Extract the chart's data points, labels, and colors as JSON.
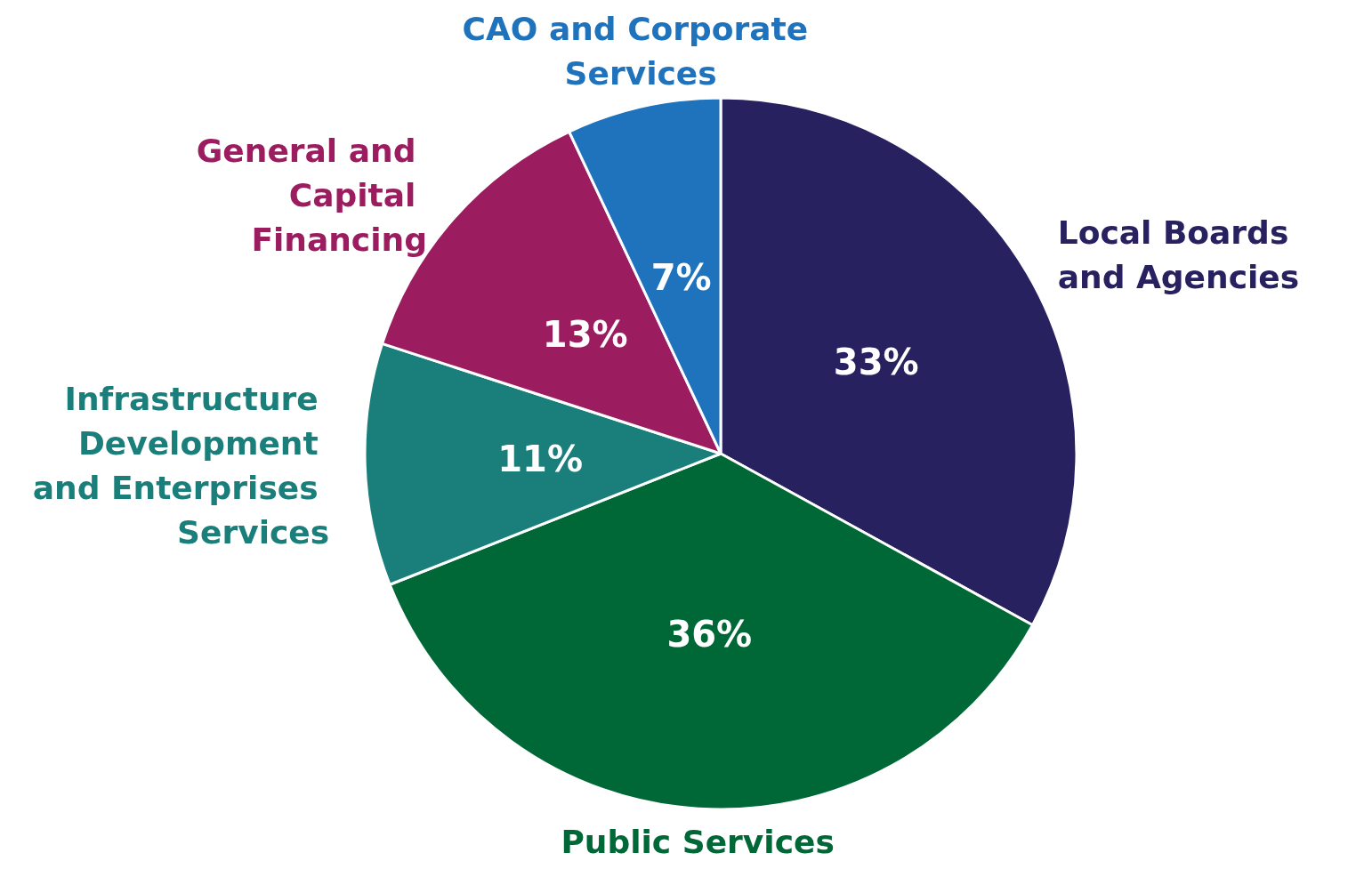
{
  "chart_data": {
    "type": "pie",
    "categories": [
      "Local Boards and Agencies",
      "Public Services",
      "Infrastructure Development and Enterprises Services",
      "General and Capital Financing",
      "CAO and Corporate Services"
    ],
    "values": [
      33,
      36,
      11,
      13,
      7
    ],
    "colors": [
      "#27215f",
      "#006837",
      "#1a7f7a",
      "#9c1d5f",
      "#1f73bd"
    ],
    "value_labels": [
      "33%",
      "36%",
      "11%",
      "13%",
      "7%"
    ]
  }
}
